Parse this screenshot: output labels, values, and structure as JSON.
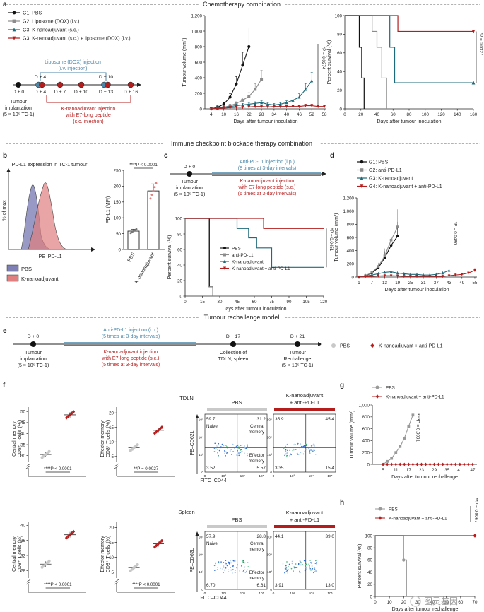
{
  "sections": {
    "chemo": "Chemotherapy combination",
    "icb": "Immune checkpoint blockade therapy combination",
    "rechallenge": "Tumour rechallenge model"
  },
  "panel_letters": [
    "a",
    "b",
    "c",
    "d",
    "e",
    "f",
    "g",
    "h"
  ],
  "colors": {
    "g1": "#111111",
    "g2": "#8c8c8c",
    "g3": "#1e6a7a",
    "g4": "#b51c1c",
    "liposome": "#4a86a8",
    "knano": "#b51c1c",
    "pbs_gray": "#c8c8c8",
    "flow_pbs": "#7e7fb5",
    "flow_kn": "#e07f7f"
  },
  "a": {
    "legend": [
      "G1: PBS",
      "G2: Liposome (DOX) (i.v.)",
      "G3: K-nanoadjuvant (s.c.)",
      "G3: K-nanoadjuvant (s.c.) + liposome (DOX) (i.v.)"
    ],
    "liposome_label": [
      "Liposome (DOX) injection",
      "(i.v. injection)"
    ],
    "knano_label": [
      "K-nanoadjuvant injection",
      "with E7-long peptide",
      "(s.c. injection)"
    ],
    "timeline_days": [
      "D + 0",
      "D + 4",
      "D + 7",
      "D + 10",
      "D + 13",
      "D + 16"
    ],
    "timeline_top_days": [
      "D + 4",
      "D + 10"
    ],
    "implant": [
      "Tumour",
      "implantation",
      "(5 × 10⁵ TC-1)"
    ],
    "tumour_plot": {
      "ylabel": "Tumour volume (mm³)",
      "xlabel": "Days after tumour inoculation",
      "yticks": [
        "0",
        "200",
        "400",
        "600",
        "800",
        "1,000",
        "1,200"
      ],
      "xticks": [
        "4",
        "10",
        "16",
        "22",
        "28",
        "34",
        "40",
        "46",
        "52",
        "58"
      ],
      "pval": "*P = 0.0274"
    },
    "survival_plot": {
      "ylabel": "Percent survival (%)",
      "xlabel": "Days after tumour inoculation",
      "yticks": [
        "0",
        "20",
        "40",
        "60",
        "80",
        "100"
      ],
      "xticks": [
        "0",
        "20",
        "40",
        "60",
        "80",
        "100",
        "120",
        "140",
        "160"
      ],
      "pval": "*P = 0.0327"
    }
  },
  "b": {
    "title": "PD-L1 expression in TC-1 tumour",
    "ylabel": "% of max",
    "xlabel": "PE–PD-L1",
    "legend": [
      "PBS",
      "K-nanoadjuvant"
    ],
    "bar_ylabel": "PD-L1 (MFI)",
    "bar_yticks": [
      "0",
      "50",
      "100",
      "150",
      "200",
      "250"
    ],
    "bar_cats": [
      "PBS",
      "K-nanoadjuvant"
    ],
    "pval": "****P < 0.0001"
  },
  "c": {
    "day": "D + 0",
    "implant": [
      "Tumour",
      "implantation",
      "(5 × 10⁵ TC-1)"
    ],
    "apd": [
      "Anti-PD-L1 injection (i.p.)",
      "(8 times at 3-day intervals)"
    ],
    "knano": [
      "K-nanoadjuvant injection",
      "with E7-long peptide (s.c.)",
      "(6 times at 3-day intervals)"
    ],
    "ylabel": "Percent survival (%)",
    "xlabel": "Days after tumour inoculation",
    "yticks": [
      "0",
      "20",
      "40",
      "60",
      "80",
      "100"
    ],
    "xticks": [
      "0",
      "15",
      "30",
      "45",
      "60",
      "75",
      "90",
      "105",
      "120"
    ],
    "legend": [
      "PBS",
      "anti-PD-L1",
      "K-nanoadjuvant",
      "K-nanoadjuvant + anti-PD-L1"
    ],
    "pval": "*P = 0.0451"
  },
  "d": {
    "legend": [
      "G1: PBS",
      "G2: anti-PD-L1",
      "G3: K-nanoadjuvant",
      "G4: K-nanoadjuvant + anti-PD-L1"
    ],
    "ylabel": "Tumour volume (mm³)",
    "xlabel": "Days after tumour inoculation",
    "yticks": [
      "0",
      "200",
      "400",
      "600",
      "800",
      "1,000",
      "1,200"
    ],
    "xticks": [
      "1",
      "7",
      "13",
      "19",
      "25",
      "31",
      "37",
      "43",
      "49",
      "55"
    ],
    "pval": "*P = 0.0486"
  },
  "e": {
    "days": [
      "D + 0",
      "D + 17",
      "D + 21"
    ],
    "implant": [
      "Tumour",
      "implantation",
      "(5 × 10⁵ TC-1)"
    ],
    "apd": [
      "Anti-PD-L1 injection (i.p.)",
      "(5 times at 3-day intervals)"
    ],
    "knano": [
      "K-nanoadjuvant injection",
      "with E7-long peptide (s.c.)",
      "(5 times at 3-day intervals)"
    ],
    "collection": [
      "Collection of",
      "TDLN, spleen"
    ],
    "rechallenge": [
      "Tumour",
      "Rechallenge",
      "(5 × 10⁵ TC-1)"
    ],
    "legend": [
      "PBS",
      "K-nanoadjuvant + anti-PD-L1"
    ]
  },
  "f": {
    "tdln_title": "TDLN",
    "spleen_title": "Spleen",
    "cm_label": [
      "Central memory",
      "CD8⁺ T cells (%)"
    ],
    "em_label": [
      "Effector memory",
      "CD8⁺ T cells (%)"
    ],
    "tdln_cm": {
      "yticks": [
        "30",
        "35",
        "40",
        "45",
        "50"
      ],
      "pval": "****P < 0.0001"
    },
    "tdln_em": {
      "yticks": [
        "5",
        "10",
        "15",
        "20"
      ],
      "pval": "**P = 0.0027"
    },
    "sp_cm": {
      "yticks": [
        "28",
        "32",
        "36",
        "40"
      ],
      "pval": "****P < 0.0001"
    },
    "sp_em": {
      "yticks": [
        "5",
        "10",
        "15",
        "20"
      ],
      "pval": "****P < 0.0001"
    },
    "flow_headers": [
      "PBS",
      "K-nanoadjuvant",
      "+ anti-PD-L1"
    ],
    "flow_y": "PE–CD62L",
    "flow_x": "FITC–CD44",
    "flow_ticks": [
      "0",
      "10³",
      "10⁴",
      "10⁵"
    ],
    "tdln_pbs": [
      "59.7",
      "31.2",
      "3.52",
      "5.57"
    ],
    "tdln_kn": [
      "35.9",
      "45.4",
      "3.35",
      "15.4"
    ],
    "sp_pbs": [
      "57.9",
      "28.8",
      "6.70",
      "6.61"
    ],
    "sp_kn": [
      "44.1",
      "39.0",
      "3.91",
      "13.0"
    ],
    "quad_labels": [
      "Naive",
      "Central",
      "memory",
      "Effector",
      "memory"
    ]
  },
  "g": {
    "legend": [
      "PBS",
      "K-nanoadjuvant + anti-PD-L1"
    ],
    "ylabel": "Tumour volume (mm³)",
    "xlabel": "Days after tumour rechallenge",
    "yticks": [
      "0",
      "200",
      "400",
      "600",
      "800",
      "1,000"
    ],
    "xticks": [
      "5",
      "11",
      "17",
      "23",
      "29",
      "35",
      "41",
      "47"
    ],
    "pval": "****P = 0.0001"
  },
  "h": {
    "legend": [
      "PBS",
      "K-nanoadjuvant + anti-PD-L1"
    ],
    "ylabel": "Percent survival (%)",
    "xlabel": "Days after tumour rechallenge",
    "yticks": [
      "0",
      "20",
      "40",
      "60",
      "80",
      "100"
    ],
    "xticks": [
      "0",
      "10",
      "20",
      "30",
      "40",
      "50",
      "60",
      "70"
    ],
    "pval": "**P = 0.0067"
  },
  "watermark": "图灵基因",
  "chart_data": [
    {
      "type": "line",
      "title": "",
      "xlabel": "Days after tumour inoculation",
      "ylabel": "Tumour volume (mm³)",
      "ylim": [
        0,
        1200
      ],
      "x": [
        4,
        7,
        10,
        13,
        16,
        19,
        22,
        25,
        28,
        31,
        34,
        37,
        40,
        43,
        46,
        49,
        52,
        55,
        58
      ],
      "series": [
        {
          "name": "G1: PBS",
          "values": [
            0,
            20,
            60,
            150,
            320,
            560,
            800,
            null,
            null,
            null,
            null,
            null,
            null,
            null,
            null,
            null,
            null,
            null,
            null
          ]
        },
        {
          "name": "G2: Liposome (DOX) (i.v.)",
          "values": [
            0,
            10,
            20,
            40,
            70,
            110,
            160,
            250,
            380,
            null,
            null,
            null,
            null,
            null,
            null,
            null,
            null,
            null,
            null
          ]
        },
        {
          "name": "G3: K-nanoadjuvant (s.c.)",
          "values": [
            0,
            10,
            20,
            30,
            40,
            50,
            60,
            70,
            80,
            60,
            50,
            60,
            80,
            110,
            150,
            250,
            360,
            null,
            null
          ]
        },
        {
          "name": "G3: K-nanoadjuvant (s.c.) + liposome (DOX) (i.v.)",
          "values": [
            0,
            5,
            10,
            15,
            20,
            20,
            25,
            30,
            30,
            25,
            30,
            30,
            30,
            30,
            30,
            40,
            40,
            30,
            30
          ]
        }
      ]
    },
    {
      "type": "line",
      "title": "",
      "xlabel": "Days after tumour inoculation",
      "ylabel": "Percent survival (%)",
      "ylim": [
        0,
        100
      ],
      "series": [
        {
          "name": "G1: PBS",
          "x": [
            0,
            15,
            18,
            21,
            24
          ],
          "values": [
            100,
            100,
            66,
            33,
            0
          ]
        },
        {
          "name": "G2: Liposome (DOX) (i.v.)",
          "x": [
            0,
            28,
            34,
            40,
            46,
            52
          ],
          "values": [
            100,
            100,
            83,
            66,
            33,
            0
          ]
        },
        {
          "name": "G3: K-nanoadjuvant (s.c.)",
          "x": [
            0,
            50,
            56,
            62,
            160
          ],
          "values": [
            100,
            100,
            66,
            28,
            28
          ]
        },
        {
          "name": "G3: K-nanoadjuvant (s.c.) + liposome (DOX) (i.v.)",
          "x": [
            0,
            66,
            160
          ],
          "values": [
            100,
            83,
            83
          ]
        }
      ]
    },
    {
      "type": "bar",
      "title": "",
      "xlabel": "",
      "ylabel": "PD-L1 (MFI)",
      "ylim": [
        0,
        250
      ],
      "categories": [
        "PBS",
        "K-nanoadjuvant"
      ],
      "values": [
        58,
        185
      ]
    },
    {
      "type": "line",
      "title": "",
      "xlabel": "Days after tumour inoculation",
      "ylabel": "Percent survival (%)",
      "ylim": [
        0,
        100
      ],
      "series": [
        {
          "name": "PBS",
          "x": [
            0,
            18,
            21,
            24
          ],
          "values": [
            100,
            100,
            12,
            0
          ]
        },
        {
          "name": "anti-PD-L1",
          "x": [
            0,
            20,
            24
          ],
          "values": [
            100,
            12,
            0
          ]
        },
        {
          "name": "K-nanoadjuvant",
          "x": [
            0,
            40,
            45,
            55,
            62,
            75,
            120
          ],
          "values": [
            100,
            100,
            87,
            75,
            62,
            37,
            37
          ]
        },
        {
          "name": "K-nanoadjuvant + anti-PD-L1",
          "x": [
            0,
            68,
            120
          ],
          "values": [
            100,
            87,
            87
          ]
        }
      ]
    },
    {
      "type": "line",
      "title": "",
      "xlabel": "Days after tumour inoculation",
      "ylabel": "Tumour volume (mm³)",
      "ylim": [
        0,
        1200
      ],
      "x": [
        1,
        4,
        7,
        10,
        13,
        16,
        19,
        22,
        25,
        28,
        31,
        34,
        37,
        40,
        43,
        46,
        49,
        52,
        55
      ],
      "series": [
        {
          "name": "G1: PBS",
          "values": [
            0,
            20,
            60,
            140,
            290,
            480,
            620,
            null,
            null,
            null,
            null,
            null,
            null,
            null,
            null,
            null,
            null,
            null,
            null
          ]
        },
        {
          "name": "G2: anti-PD-L1",
          "values": [
            0,
            20,
            70,
            160,
            320,
            560,
            760,
            null,
            null,
            null,
            null,
            null,
            null,
            null,
            null,
            null,
            null,
            null,
            null
          ]
        },
        {
          "name": "G3: K-nanoadjuvant",
          "values": [
            0,
            15,
            30,
            50,
            70,
            80,
            60,
            50,
            40,
            40,
            30,
            30,
            40,
            60,
            100,
            null,
            null,
            null,
            null
          ]
        },
        {
          "name": "G4: K-nanoadjuvant + anti-PD-L1",
          "values": [
            0,
            5,
            10,
            15,
            20,
            20,
            15,
            10,
            10,
            10,
            10,
            10,
            10,
            10,
            20,
            30,
            40,
            60,
            100
          ]
        }
      ]
    },
    {
      "type": "line",
      "title": "",
      "xlabel": "Days after tumour rechallenge",
      "ylabel": "Tumour volume (mm³)",
      "ylim": [
        0,
        1000
      ],
      "x": [
        5,
        7,
        9,
        11,
        13,
        15,
        17,
        19,
        21,
        23,
        25,
        27,
        29,
        31,
        33,
        35,
        37,
        39,
        41,
        43,
        45,
        47
      ],
      "series": [
        {
          "name": "PBS",
          "values": [
            0,
            50,
            100,
            200,
            300,
            440,
            640,
            830,
            null,
            null,
            null,
            null,
            null,
            null,
            null,
            null,
            null,
            null,
            null,
            null,
            null,
            null
          ]
        },
        {
          "name": "K-nanoadjuvant + anti-PD-L1",
          "values": [
            0,
            0,
            0,
            0,
            0,
            0,
            0,
            0,
            0,
            0,
            0,
            0,
            0,
            0,
            0,
            0,
            0,
            0,
            0,
            0,
            0,
            0
          ]
        }
      ]
    },
    {
      "type": "line",
      "title": "",
      "xlabel": "Days after tumour rechallenge",
      "ylabel": "Percent survival (%)",
      "ylim": [
        0,
        100
      ],
      "series": [
        {
          "name": "PBS",
          "x": [
            0,
            18,
            20,
            22
          ],
          "values": [
            100,
            100,
            60,
            0
          ]
        },
        {
          "name": "K-nanoadjuvant + anti-PD-L1",
          "x": [
            0,
            70
          ],
          "values": [
            100,
            100
          ]
        }
      ]
    }
  ]
}
